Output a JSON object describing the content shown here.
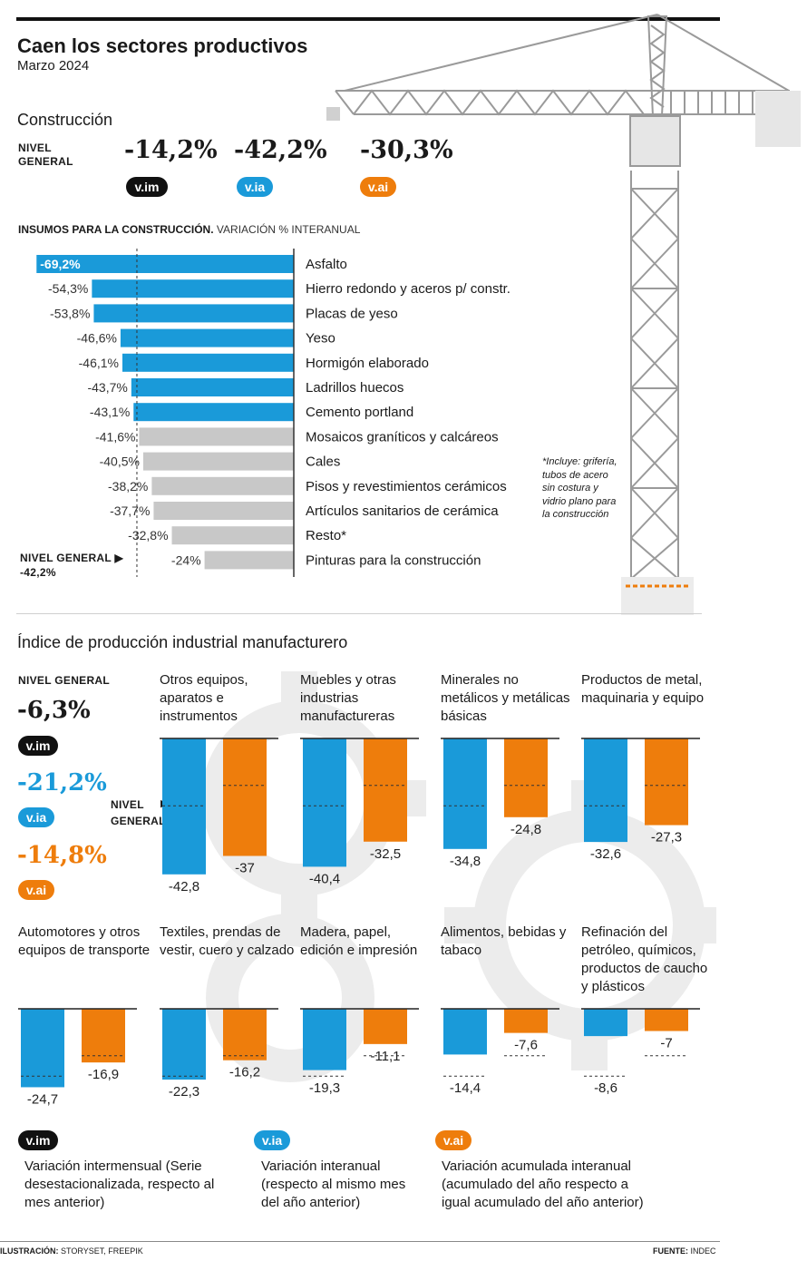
{
  "header": {
    "title": "Caen los sectores productivos",
    "subtitle": "Marzo 2024"
  },
  "construction": {
    "section_title": "Construcción",
    "nivel_label_1": "NIVEL",
    "nivel_label_2": "GENERAL",
    "vim_value": "-14,2%",
    "via_value": "-42,2%",
    "vai_value": "-30,3%",
    "tag_im": "v.im",
    "tag_ia": "v.ia",
    "tag_ai": "v.ai"
  },
  "insumos": {
    "title_bold": "INSUMOS PARA LA CONSTRUCCIÓN.",
    "title_rest": "VARIACIÓN % INTERANUAL",
    "nivel_general_label": "NIVEL GENERAL",
    "nivel_general_value": "-42,2%",
    "footnote": "*Incluye: grifería, tubos de acero sin costura y vidrio plano para la construcción"
  },
  "industria": {
    "section_title": "Índice de producción industrial manufacturero",
    "nivel_label": "NIVEL GENERAL",
    "vim_value": "-6,3%",
    "via_value": "-21,2%",
    "vai_value": "-14,8%",
    "marker_label_1": "NIVEL",
    "marker_label_2": "GENERAL"
  },
  "legend": {
    "im_tag": "v.im",
    "ia_tag": "v.ia",
    "ai_tag": "v.ai",
    "im_desc": "Variación intermensual (Serie desestacionalizada, respecto al mes anterior)",
    "ia_desc": "Variación interanual (respecto al mismo mes del año anterior)",
    "ai_desc": "Variación acumulada interanual (acumulado del año respecto a igual acumulado del año anterior)"
  },
  "footer": {
    "credit_bold": "ILUSTRACIÓN:",
    "credit_rest": "STORYSET, FREEPIK",
    "source_bold": "FUENTE:",
    "source_rest": "INDEC"
  },
  "colors": {
    "blue": "#1a9ad9",
    "orange": "#ee7d0c",
    "gray": "#c8c8c8",
    "black": "#111111"
  },
  "chart_data": [
    {
      "type": "bar",
      "orientation": "horizontal",
      "categories": [
        "Asfalto",
        "Hierro redondo y aceros p/ constr.",
        "Placas de yeso",
        "Yeso",
        "Hormigón elaborado",
        "Ladrillos huecos",
        "Cemento portland",
        "Mosaicos graníticos y calcáreos",
        "Cales",
        "Pisos y revestimientos cerámicos",
        "Artículos sanitarios de cerámica",
        "Resto*",
        "Pinturas para la construcción"
      ],
      "values": [
        -69.2,
        -54.3,
        -53.8,
        -46.6,
        -46.1,
        -43.7,
        -43.1,
        -41.6,
        -40.5,
        -38.2,
        -37.7,
        -32.8,
        -24
      ],
      "value_labels": [
        "-69,2%",
        "-54,3%",
        "-53,8%",
        "-46,6%",
        "-46,1%",
        "-43,7%",
        "-43,1%",
        "-41,6%",
        "-40,5%",
        "-38,2%",
        "-37,7%",
        "-32,8%",
        "-24%"
      ],
      "reference_line": -42.2,
      "colors_note": "blue when below nivel general, gray otherwise"
    },
    {
      "type": "bar",
      "series": [
        {
          "name": "v.ia",
          "values": [
            -42.8,
            -40.4,
            -34.8,
            -32.6,
            -24.7,
            -22.3,
            -19.3,
            -14.4,
            -8.6
          ],
          "labels": [
            "-42,8",
            "-40,4",
            "-34,8",
            "-32,6",
            "-24,7",
            "-22,3",
            "-19,3",
            "-14,4",
            "-8,6"
          ]
        },
        {
          "name": "v.ai",
          "values": [
            -37,
            -32.5,
            -24.8,
            -27.3,
            -16.9,
            -16.2,
            -11.1,
            -7.6,
            -7
          ],
          "labels": [
            "-37",
            "-32,5",
            "-24,8",
            "-27,3",
            "-16,9",
            "-16,2",
            "-11,1",
            "-7,6",
            "-7"
          ]
        }
      ],
      "categories": [
        "Otros equipos, aparatos e instrumentos",
        "Muebles y otras industrias manufactureras",
        "Minerales no metálicos y metálicas básicas",
        "Productos de metal, maquinaria y equipo",
        "Automotores y otros equipos de transporte",
        "Textiles, prendas de vestir, cuero y calzado",
        "Madera, papel, edición e impresión",
        "Alimentos, bebidas y tabaco",
        "Refinación del petróleo, químicos, productos de caucho y plásticos"
      ],
      "reference_lines": {
        "v.ia": -21.2,
        "v.ai": -14.8
      }
    }
  ]
}
